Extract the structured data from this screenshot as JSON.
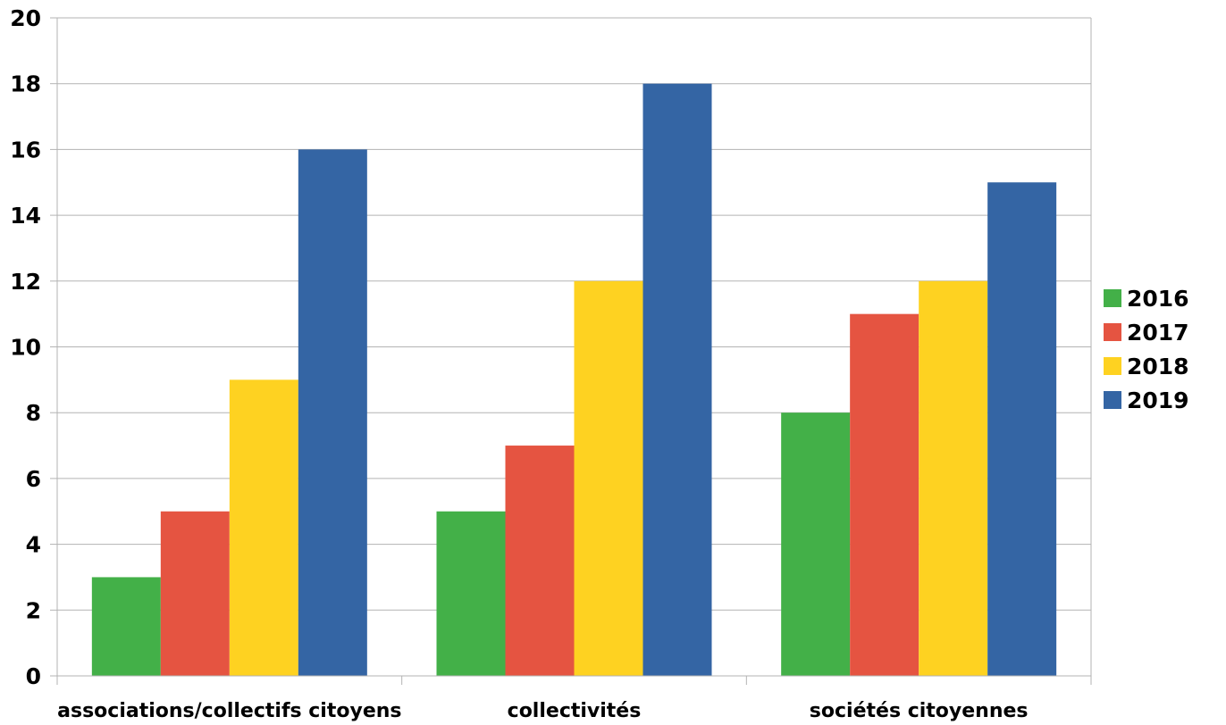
{
  "chart_data": {
    "type": "bar",
    "title": "",
    "xlabel": "",
    "ylabel": "",
    "categories": [
      "associations/collectifs citoyens",
      "collectivités",
      "sociétés citoyennes"
    ],
    "series": [
      {
        "name": "2016",
        "color": "#43b048",
        "values": [
          3,
          5,
          8
        ]
      },
      {
        "name": "2017",
        "color": "#e55441",
        "values": [
          5,
          7,
          11
        ]
      },
      {
        "name": "2018",
        "color": "#fed221",
        "values": [
          9,
          12,
          12
        ]
      },
      {
        "name": "2019",
        "color": "#3465a4",
        "values": [
          16,
          18,
          15
        ]
      }
    ],
    "ylim": [
      0,
      20
    ],
    "yticks": [
      0,
      2,
      4,
      6,
      8,
      10,
      12,
      14,
      16,
      18,
      20
    ],
    "grid": true,
    "legend_position": "right"
  }
}
